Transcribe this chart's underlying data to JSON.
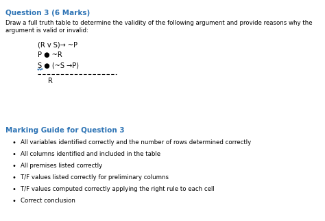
{
  "title": "Question 3 (6 Marks)",
  "title_color": "#2E74B5",
  "body_line1": "Draw a full truth table to determine the validity of the following argument and provide reasons why the",
  "body_line2": "argument is valid or invalid:",
  "body_color": "#000000",
  "premises": [
    "(R v S)→ ~P",
    "P ● ~R",
    "S ● (~S →P)"
  ],
  "conclusion": "R",
  "marking_title": "Marking Guide for Question 3",
  "marking_title_color": "#2E74B5",
  "bullet_points": [
    "All variables identified correctly and the number of rows determined correctly",
    "All columns identified and included in the table",
    "All premises listed correctly",
    "T/F values listed correctly for preliminary columns",
    "T/F values computed correctly applying the right rule to each cell",
    "Correct conclusion"
  ],
  "bg_color": "#ffffff",
  "font_size_title": 7.5,
  "font_size_body": 6.2,
  "font_size_premises": 7.0,
  "font_size_marking": 7.5,
  "font_size_bullets": 6.2
}
